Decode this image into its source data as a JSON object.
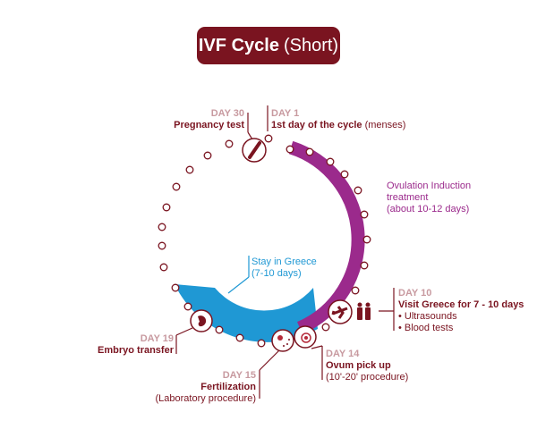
{
  "title": {
    "bold": "IVF Cycle",
    "rest": "(Short)"
  },
  "colors": {
    "brand": "#7a1420",
    "ovulation": "#9b2a8c",
    "stay": "#1f98d4",
    "day_label": "#c89aa0"
  },
  "events": {
    "day30": {
      "day": "DAY 30",
      "label": "Pregnancy test",
      "icon": "pregnancy-test-icon"
    },
    "day1": {
      "day": "DAY 1",
      "label": "1st day of the cycle",
      "note": "(menses)"
    },
    "ovulation": {
      "line1": "Ovulation Induction",
      "line2": "treatment",
      "line3": "(about 10-12 days)"
    },
    "stay": {
      "line1": "Stay in Greece",
      "line2": "(7-10 days)"
    },
    "day10": {
      "day": "DAY 10",
      "label": "Visit Greece for 7 - 10 days",
      "items": [
        "• Ultrasounds",
        "• Blood tests"
      ],
      "icon": "airplane-icon"
    },
    "day14": {
      "day": "DAY 14",
      "label": "Ovum pick up",
      "note": "(10'-20' procedure)",
      "icon": "ovum-icon"
    },
    "day15": {
      "day": "DAY 15",
      "label": "Fertilization",
      "note": "(Laboratory procedure)",
      "icon": "fertilization-icon"
    },
    "day19": {
      "day": "DAY 19",
      "label": "Embryo transfer",
      "icon": "embryo-icon"
    }
  }
}
